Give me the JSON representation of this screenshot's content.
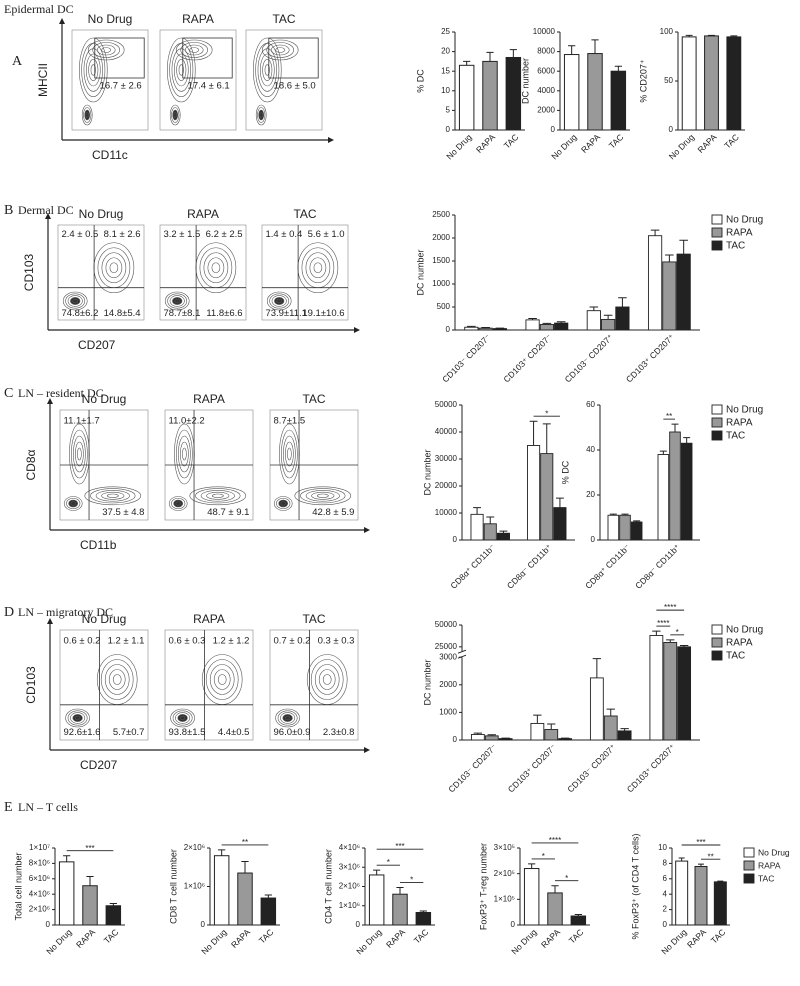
{
  "sections": [
    {
      "letter": "A",
      "title": "Epidermal DC"
    },
    {
      "letter": "B",
      "title": "Dermal DC"
    },
    {
      "letter": "C",
      "title": "LN – resident DC"
    },
    {
      "letter": "D",
      "title": "LN – migratory DC"
    },
    {
      "letter": "E",
      "title": "LN – T cells"
    }
  ],
  "flow_panels": [
    {
      "x_label": "CD11c",
      "y_label": "MHCII",
      "plots": [
        {
          "title": "No Drug",
          "gate": "16.7 ± 2.6"
        },
        {
          "title": "RAPA",
          "gate": "17.4 ± 6.1"
        },
        {
          "title": "TAC",
          "gate": "18.6 ± 5.0"
        }
      ]
    },
    {
      "x_label": "CD207",
      "y_label": "CD103",
      "plots": [
        {
          "title": "No Drug",
          "upper_left": "2.4 ± 0.5",
          "upper_right": "8.1 ± 2.6",
          "lower_left": "74.8±6.2",
          "lower_right": "14.8±5.4"
        },
        {
          "title": "RAPA",
          "upper_left": "3.2 ± 1.5",
          "upper_right": "6.2 ± 2.5",
          "lower_left": "78.7±8.1",
          "lower_right": "11.8±6.6"
        },
        {
          "title": "TAC",
          "upper_left": "1.4 ± 0.4",
          "upper_right": "5.6 ± 1.0",
          "lower_left": "73.9±11.1",
          "lower_right": "19.1±10.6"
        }
      ]
    },
    {
      "x_label": "CD11b",
      "y_label": "CD8α",
      "plots": [
        {
          "title": "No Drug",
          "upper_left": "11.1±1.7",
          "lower_right": "37.5 ± 4.8"
        },
        {
          "title": "RAPA",
          "upper_left": "11.0±2.2",
          "lower_right": "48.7 ± 9.1"
        },
        {
          "title": "TAC",
          "upper_left": "8.7±1.5",
          "lower_right": "42.8 ± 5.9"
        }
      ]
    },
    {
      "x_label": "CD207",
      "y_label": "CD103",
      "plots": [
        {
          "title": "No Drug",
          "upper_left": "0.6 ± 0.2",
          "upper_right": "1.2 ± 1.1",
          "lower_left": "92.6±1.6",
          "lower_right": "5.7±0.7"
        },
        {
          "title": "RAPA",
          "upper_left": "0.6 ± 0.3",
          "upper_right": "1.2 ± 1.2",
          "lower_left": "93.8±1.5",
          "lower_right": "4.4±0.5"
        },
        {
          "title": "TAC",
          "upper_left": "0.7 ± 0.2",
          "upper_right": "0.3 ± 0.3",
          "lower_left": "96.0±0.9",
          "lower_right": "2.3±0.8"
        }
      ]
    }
  ],
  "chart_data": [
    {
      "type": "bar",
      "ylabel": "% DC",
      "categories": [
        "No Drug",
        "RAPA",
        "TAC"
      ],
      "values": [
        16.5,
        17.5,
        18.5
      ],
      "errors": [
        1.0,
        2.3,
        2.0
      ],
      "colors": [
        "#ffffff",
        "#999999",
        "#222222"
      ],
      "ylim": [
        0,
        25
      ],
      "yticks": [
        0,
        5,
        10,
        15,
        20,
        25
      ]
    },
    {
      "type": "bar",
      "ylabel": "DC number",
      "categories": [
        "No Drug",
        "RAPA",
        "TAC"
      ],
      "values": [
        7700,
        7800,
        6000
      ],
      "errors": [
        900,
        1400,
        500
      ],
      "colors": [
        "#ffffff",
        "#999999",
        "#222222"
      ],
      "ylim": [
        0,
        10000
      ],
      "yticks": [
        0,
        2000,
        4000,
        6000,
        8000,
        10000
      ]
    },
    {
      "type": "bar",
      "ylabel": "% CD207⁺",
      "categories": [
        "No Drug",
        "RAPA",
        "TAC"
      ],
      "values": [
        95,
        96,
        95
      ],
      "errors": [
        1.5,
        0.5,
        1.0
      ],
      "colors": [
        "#ffffff",
        "#999999",
        "#222222"
      ],
      "ylim": [
        0,
        100
      ],
      "yticks": [
        0,
        50,
        100
      ]
    },
    {
      "type": "grouped_bar",
      "ylabel": "DC number",
      "categories": [
        "CD103⁻ CD207⁻",
        "CD103⁺ CD207⁻",
        "CD103⁻ CD207⁺",
        "CD103⁺ CD207⁺"
      ],
      "series": [
        {
          "name": "No Drug",
          "color": "#ffffff",
          "values": [
            60,
            220,
            420,
            2050
          ],
          "errors": [
            20,
            30,
            80,
            120
          ]
        },
        {
          "name": "RAPA",
          "color": "#999999",
          "values": [
            40,
            120,
            230,
            1480
          ],
          "errors": [
            15,
            25,
            90,
            150
          ]
        },
        {
          "name": "TAC",
          "color": "#222222",
          "values": [
            30,
            150,
            500,
            1650
          ],
          "errors": [
            10,
            30,
            200,
            300
          ]
        }
      ],
      "ylim": [
        0,
        2500
      ],
      "yticks": [
        0,
        500,
        1000,
        1500,
        2000,
        2500
      ],
      "legend": true
    },
    {
      "type": "grouped_bar",
      "ylabel": "DC number",
      "categories": [
        "CD8α⁺ CD11b⁻",
        "CD8α⁻ CD11b⁺"
      ],
      "series": [
        {
          "name": "No Drug",
          "color": "#ffffff",
          "values": [
            9500,
            35000
          ],
          "errors": [
            2500,
            9000
          ]
        },
        {
          "name": "RAPA",
          "color": "#999999",
          "values": [
            6000,
            32000
          ],
          "errors": [
            2500,
            11000
          ]
        },
        {
          "name": "TAC",
          "color": "#222222",
          "values": [
            2500,
            12000
          ],
          "errors": [
            800,
            3500
          ]
        }
      ],
      "ylim": [
        0,
        50000
      ],
      "yticks": [
        0,
        10000,
        20000,
        30000,
        40000,
        50000
      ],
      "annotations": [
        {
          "text": "*",
          "category": "CD8α⁻ CD11b⁺",
          "between": [
            "No Drug",
            "TAC"
          ]
        }
      ]
    },
    {
      "type": "grouped_bar",
      "ylabel": "% DC",
      "categories": [
        "CD8α⁺ CD11b⁻",
        "CD8α⁻ CD11b⁺"
      ],
      "series": [
        {
          "name": "No Drug",
          "color": "#ffffff",
          "values": [
            11,
            38
          ],
          "errors": [
            0.5,
            1.5
          ]
        },
        {
          "name": "RAPA",
          "color": "#999999",
          "values": [
            11,
            48
          ],
          "errors": [
            0.5,
            3.5
          ]
        },
        {
          "name": "TAC",
          "color": "#222222",
          "values": [
            8,
            43
          ],
          "errors": [
            0.5,
            2.5
          ]
        }
      ],
      "ylim": [
        0,
        60
      ],
      "yticks": [
        0,
        20,
        40,
        60
      ],
      "legend": true,
      "annotations": [
        {
          "text": "**",
          "category": "CD8α⁻ CD11b⁺",
          "between": [
            "No Drug",
            "RAPA"
          ]
        }
      ]
    },
    {
      "type": "grouped_bar",
      "ylabel": "DC number",
      "categories": [
        "CD103⁻ CD207⁻",
        "CD103⁺ CD207⁻",
        "CD103⁻ CD207⁺",
        "CD103⁺ CD207⁺"
      ],
      "series": [
        {
          "name": "No Drug",
          "color": "#ffffff",
          "values": [
            200,
            600,
            2250,
            38000
          ],
          "errors": [
            50,
            300,
            700,
            5000
          ]
        },
        {
          "name": "RAPA",
          "color": "#999999",
          "values": [
            150,
            380,
            870,
            30000
          ],
          "errors": [
            40,
            200,
            250,
            3000
          ]
        },
        {
          "name": "TAC",
          "color": "#222222",
          "values": [
            50,
            50,
            330,
            25000
          ],
          "errors": [
            20,
            20,
            80,
            1500
          ]
        }
      ],
      "ylim": [
        0,
        50000
      ],
      "axis_break": [
        3000,
        20000
      ],
      "yticks": [
        0,
        1000,
        2000,
        3000,
        25000,
        50000
      ],
      "legend": true,
      "annotations": [
        {
          "text": "*",
          "category": "CD103⁺ CD207⁺",
          "between": [
            "RAPA",
            "TAC"
          ]
        },
        {
          "text": "****",
          "category": "CD103⁺ CD207⁺",
          "between": [
            "No Drug",
            "RAPA"
          ]
        },
        {
          "text": "****",
          "category": "CD103⁺ CD207⁺",
          "between": [
            "No Drug",
            "TAC"
          ]
        }
      ]
    },
    {
      "type": "bar",
      "ylabel": "Total cell number",
      "categories": [
        "No Drug",
        "RAPA",
        "TAC"
      ],
      "values": [
        8200000,
        5100000,
        2500000
      ],
      "errors": [
        800000,
        1200000,
        300000
      ],
      "colors": [
        "#ffffff",
        "#999999",
        "#222222"
      ],
      "ylim": [
        0,
        10000000
      ],
      "yticks": [
        0,
        {
          "value": 2000000,
          "label": "2×10⁶"
        },
        {
          "value": 4000000,
          "label": "4×10⁶"
        },
        {
          "value": 6000000,
          "label": "6×10⁶"
        },
        {
          "value": 8000000,
          "label": "8×10⁶"
        },
        {
          "value": 10000000,
          "label": "1×10⁷"
        }
      ],
      "annotations": [
        {
          "text": "***",
          "between": [
            "No Drug",
            "TAC"
          ]
        }
      ]
    },
    {
      "type": "bar",
      "ylabel": "CD8 T cell number",
      "categories": [
        "No Drug",
        "RAPA",
        "TAC"
      ],
      "values": [
        1800000,
        1350000,
        700000
      ],
      "errors": [
        150000,
        300000,
        80000
      ],
      "colors": [
        "#ffffff",
        "#999999",
        "#222222"
      ],
      "ylim": [
        0,
        2000000
      ],
      "yticks": [
        0,
        {
          "value": 1000000,
          "label": "1×10⁶"
        },
        {
          "value": 2000000,
          "label": "2×10⁶"
        }
      ],
      "annotations": [
        {
          "text": "**",
          "between": [
            "No Drug",
            "TAC"
          ]
        }
      ]
    },
    {
      "type": "bar",
      "ylabel": "CD4 T cell number",
      "categories": [
        "No Drug",
        "RAPA",
        "TAC"
      ],
      "values": [
        2600000,
        1600000,
        650000
      ],
      "errors": [
        250000,
        350000,
        80000
      ],
      "colors": [
        "#ffffff",
        "#999999",
        "#222222"
      ],
      "ylim": [
        0,
        4000000
      ],
      "yticks": [
        0,
        {
          "value": 1000000,
          "label": "1×10⁶"
        },
        {
          "value": 2000000,
          "label": "2×10⁶"
        },
        {
          "value": 3000000,
          "label": "3×10⁶"
        },
        {
          "value": 4000000,
          "label": "4×10⁶"
        }
      ],
      "annotations": [
        {
          "text": "*",
          "between": [
            "RAPA",
            "TAC"
          ]
        },
        {
          "text": "*",
          "between": [
            "No Drug",
            "RAPA"
          ]
        },
        {
          "text": "***",
          "between": [
            "No Drug",
            "TAC"
          ]
        }
      ]
    },
    {
      "type": "bar",
      "ylabel": "FoxP3⁺ T-reg number",
      "categories": [
        "No Drug",
        "RAPA",
        "TAC"
      ],
      "values": [
        220000,
        125000,
        35000
      ],
      "errors": [
        18000,
        28000,
        6000
      ],
      "colors": [
        "#ffffff",
        "#999999",
        "#222222"
      ],
      "ylim": [
        0,
        300000
      ],
      "yticks": [
        0,
        {
          "value": 100000,
          "label": "1×10⁵"
        },
        {
          "value": 200000,
          "label": "2×10⁵"
        },
        {
          "value": 300000,
          "label": "3×10⁵"
        }
      ],
      "annotations": [
        {
          "text": "*",
          "between": [
            "RAPA",
            "TAC"
          ]
        },
        {
          "text": "*",
          "between": [
            "No Drug",
            "RAPA"
          ]
        },
        {
          "text": "****",
          "between": [
            "No Drug",
            "TAC"
          ]
        }
      ]
    },
    {
      "type": "bar",
      "ylabel": "% FoxP3⁺ (of CD4 T cells)",
      "categories": [
        "No Drug",
        "RAPA",
        "TAC"
      ],
      "values": [
        8.3,
        7.6,
        5.6
      ],
      "errors": [
        0.4,
        0.3,
        0.1
      ],
      "colors": [
        "#ffffff",
        "#999999",
        "#222222"
      ],
      "ylim": [
        0,
        10
      ],
      "yticks": [
        0,
        2,
        4,
        6,
        8,
        10
      ],
      "legend": true,
      "annotations": [
        {
          "text": "**",
          "between": [
            "RAPA",
            "TAC"
          ]
        },
        {
          "text": "***",
          "between": [
            "No Drug",
            "TAC"
          ]
        }
      ]
    }
  ]
}
